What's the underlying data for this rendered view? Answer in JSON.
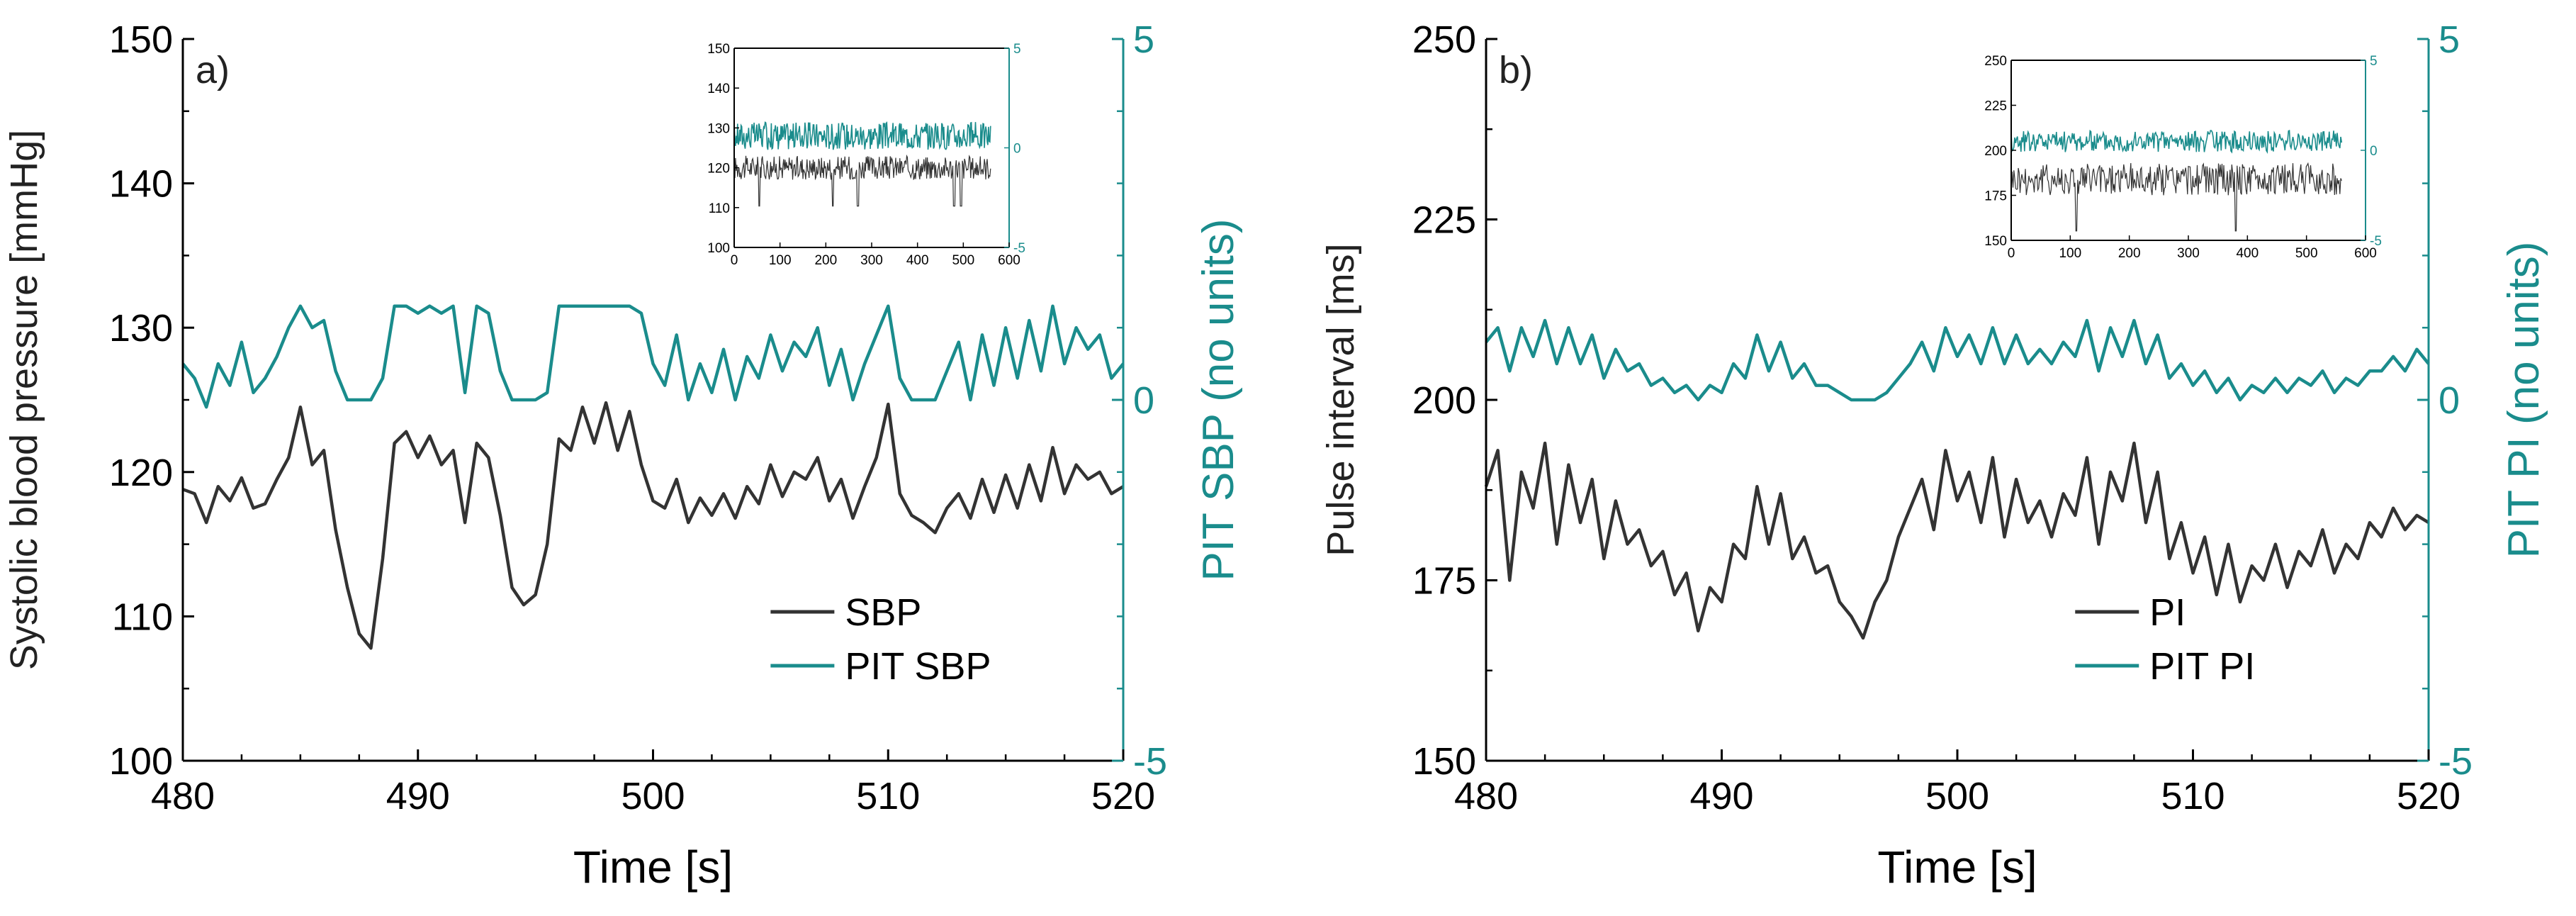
{
  "colors": {
    "primary": "#333333",
    "secondary": "#1a8c8c",
    "axis": "#000000"
  },
  "chart_data": [
    {
      "type": "line",
      "panel_label": "a)",
      "xlabel": "Time [s]",
      "ylabel": "Systolic blood pressure [mmHg]",
      "y2label": "PIT SBP (no units)",
      "xlim": [
        480,
        520
      ],
      "ylim": [
        100,
        150
      ],
      "y2lim": [
        -5,
        5
      ],
      "xticks": [
        "480",
        "490",
        "500",
        "510",
        "520"
      ],
      "yticks": [
        "100",
        "110",
        "120",
        "130",
        "140",
        "150"
      ],
      "y2ticks": [
        "-5",
        "0",
        "5"
      ],
      "legend": [
        "SBP",
        "PIT SBP"
      ],
      "legend_position": "lower-right",
      "series": [
        {
          "name": "SBP",
          "axis": "left",
          "x": [
            480,
            480.5,
            481,
            481.5,
            482,
            482.5,
            483,
            483.5,
            484,
            484.5,
            485,
            485.5,
            486,
            486.5,
            487,
            487.5,
            488,
            488.5,
            489,
            489.5,
            490,
            490.5,
            491,
            491.5,
            492,
            492.5,
            493,
            493.5,
            494,
            494.5,
            495,
            495.5,
            496,
            496.5,
            497,
            497.5,
            498,
            498.5,
            499,
            499.5,
            500,
            500.5,
            501,
            501.5,
            502,
            502.5,
            503,
            503.5,
            504,
            504.5,
            505,
            505.5,
            506,
            506.5,
            507,
            507.5,
            508,
            508.5,
            509,
            509.5,
            510,
            510.5,
            511,
            511.5,
            512,
            512.5,
            513,
            513.5,
            514,
            514.5,
            515,
            515.5,
            516,
            516.5,
            517,
            517.5,
            518,
            518.5,
            519,
            519.5,
            520
          ],
          "values": [
            118.8,
            118.5,
            116.5,
            119,
            118,
            119.6,
            117.5,
            117.8,
            119.5,
            121,
            124.5,
            120.5,
            121.5,
            116,
            112,
            108.8,
            107.8,
            114,
            122,
            122.8,
            121,
            122.5,
            120.5,
            121.5,
            116.5,
            122,
            121,
            117,
            112,
            110.8,
            111.5,
            115,
            122.3,
            121.5,
            124.5,
            122,
            124.8,
            121.5,
            124.2,
            120.5,
            118,
            117.5,
            119.5,
            116.5,
            118.2,
            117,
            118.5,
            116.8,
            119,
            117.8,
            120.5,
            118.3,
            120,
            119.5,
            121,
            118,
            119.5,
            116.8,
            119,
            121,
            124.7,
            118.5,
            117,
            116.5,
            115.8,
            117.5,
            118.5,
            116.8,
            119.5,
            117.2,
            119.8,
            117.5,
            120.5,
            118,
            121.7,
            118.5,
            120.5,
            119.5,
            120,
            118.5,
            119
          ]
        },
        {
          "name": "PIT SBP",
          "axis": "right",
          "x": [
            480,
            480.5,
            481,
            481.5,
            482,
            482.5,
            483,
            483.5,
            484,
            484.5,
            485,
            485.5,
            486,
            486.5,
            487,
            487.5,
            488,
            488.5,
            489,
            489.5,
            490,
            490.5,
            491,
            491.5,
            492,
            492.5,
            493,
            493.5,
            494,
            494.5,
            495,
            495.5,
            496,
            496.5,
            497,
            497.5,
            498,
            498.5,
            499,
            499.5,
            500,
            500.5,
            501,
            501.5,
            502,
            502.5,
            503,
            503.5,
            504,
            504.5,
            505,
            505.5,
            506,
            506.5,
            507,
            507.5,
            508,
            508.5,
            509,
            509.5,
            510,
            510.5,
            511,
            511.5,
            512,
            512.5,
            513,
            513.5,
            514,
            514.5,
            515,
            515.5,
            516,
            516.5,
            517,
            517.5,
            518,
            518.5,
            519,
            519.5,
            520
          ],
          "values": [
            0.5,
            0.3,
            -0.1,
            0.5,
            0.2,
            0.8,
            0.1,
            0.3,
            0.6,
            1.0,
            1.3,
            1.0,
            1.1,
            0.4,
            0.0,
            0.0,
            0.0,
            0.3,
            1.3,
            1.3,
            1.2,
            1.3,
            1.2,
            1.3,
            0.1,
            1.3,
            1.2,
            0.4,
            0.0,
            0.0,
            0.0,
            0.1,
            1.3,
            1.3,
            1.3,
            1.3,
            1.3,
            1.3,
            1.3,
            1.2,
            0.5,
            0.2,
            0.9,
            0.0,
            0.5,
            0.1,
            0.7,
            0.0,
            0.6,
            0.3,
            0.9,
            0.4,
            0.8,
            0.6,
            1.0,
            0.2,
            0.7,
            0.0,
            0.5,
            0.9,
            1.3,
            0.3,
            0.0,
            0.0,
            0.0,
            0.4,
            0.8,
            0.0,
            0.9,
            0.2,
            1.0,
            0.3,
            1.1,
            0.4,
            1.3,
            0.5,
            1.0,
            0.7,
            0.9,
            0.3,
            0.5
          ]
        }
      ],
      "inset": {
        "xlim": [
          0,
          600
        ],
        "ylim": [
          100,
          150
        ],
        "y2lim": [
          -5,
          5
        ],
        "xticks": [
          "0",
          "100",
          "200",
          "300",
          "400",
          "500",
          "600"
        ],
        "yticks": [
          "100",
          "110",
          "120",
          "130",
          "140",
          "150"
        ],
        "y2ticks": [
          "-5",
          "0",
          "5"
        ],
        "data_extent": [
          0,
          560
        ],
        "primary_mean": 120,
        "primary_amp": 3,
        "primary_spikes": [
          55,
          215,
          270,
          480,
          495
        ],
        "secondary_mean": 0.6,
        "secondary_amp": 0.7
      }
    },
    {
      "type": "line",
      "panel_label": "b)",
      "xlabel": "Time [s]",
      "ylabel": "Pulse interval [ms]",
      "y2label": "PIT PI (no units)",
      "xlim": [
        480,
        520
      ],
      "ylim": [
        150,
        250
      ],
      "y2lim": [
        -5,
        5
      ],
      "xticks": [
        "480",
        "490",
        "500",
        "510",
        "520"
      ],
      "yticks": [
        "150",
        "175",
        "200",
        "225",
        "250"
      ],
      "y2ticks": [
        "-5",
        "0",
        "5"
      ],
      "legend": [
        "PI",
        "PIT PI"
      ],
      "legend_position": "lower-right",
      "series": [
        {
          "name": "PI",
          "axis": "left",
          "x": [
            480,
            480.5,
            481,
            481.5,
            482,
            482.5,
            483,
            483.5,
            484,
            484.5,
            485,
            485.5,
            486,
            486.5,
            487,
            487.5,
            488,
            488.5,
            489,
            489.5,
            490,
            490.5,
            491,
            491.5,
            492,
            492.5,
            493,
            493.5,
            494,
            494.5,
            495,
            495.5,
            496,
            496.5,
            497,
            497.5,
            498,
            498.5,
            499,
            499.5,
            500,
            500.5,
            501,
            501.5,
            502,
            502.5,
            503,
            503.5,
            504,
            504.5,
            505,
            505.5,
            506,
            506.5,
            507,
            507.5,
            508,
            508.5,
            509,
            509.5,
            510,
            510.5,
            511,
            511.5,
            512,
            512.5,
            513,
            513.5,
            514,
            514.5,
            515,
            515.5,
            516,
            516.5,
            517,
            517.5,
            518,
            518.5,
            519,
            519.5,
            520
          ],
          "values": [
            188,
            193,
            175,
            190,
            185,
            194,
            180,
            191,
            183,
            189,
            178,
            186,
            180,
            182,
            177,
            179,
            173,
            176,
            168,
            174,
            172,
            180,
            178,
            188,
            180,
            187,
            178,
            181,
            176,
            177,
            172,
            170,
            167,
            172,
            175,
            181,
            185,
            189,
            182,
            193,
            186,
            190,
            183,
            192,
            181,
            189,
            183,
            186,
            181,
            187,
            184,
            192,
            180,
            190,
            186,
            194,
            183,
            190,
            178,
            183,
            176,
            181,
            173,
            180,
            172,
            177,
            175,
            180,
            174,
            179,
            177,
            182,
            176,
            180,
            178,
            183,
            181,
            185,
            182,
            184,
            183
          ]
        },
        {
          "name": "PIT PI",
          "axis": "right",
          "x": [
            480,
            480.5,
            481,
            481.5,
            482,
            482.5,
            483,
            483.5,
            484,
            484.5,
            485,
            485.5,
            486,
            486.5,
            487,
            487.5,
            488,
            488.5,
            489,
            489.5,
            490,
            490.5,
            491,
            491.5,
            492,
            492.5,
            493,
            493.5,
            494,
            494.5,
            495,
            495.5,
            496,
            496.5,
            497,
            497.5,
            498,
            498.5,
            499,
            499.5,
            500,
            500.5,
            501,
            501.5,
            502,
            502.5,
            503,
            503.5,
            504,
            504.5,
            505,
            505.5,
            506,
            506.5,
            507,
            507.5,
            508,
            508.5,
            509,
            509.5,
            510,
            510.5,
            511,
            511.5,
            512,
            512.5,
            513,
            513.5,
            514,
            514.5,
            515,
            515.5,
            516,
            516.5,
            517,
            517.5,
            518,
            518.5,
            519,
            519.5,
            520
          ],
          "values": [
            0.8,
            1.0,
            0.4,
            1.0,
            0.6,
            1.1,
            0.5,
            1.0,
            0.5,
            0.9,
            0.3,
            0.7,
            0.4,
            0.5,
            0.2,
            0.3,
            0.1,
            0.2,
            0.0,
            0.2,
            0.1,
            0.5,
            0.3,
            0.9,
            0.4,
            0.8,
            0.3,
            0.5,
            0.2,
            0.2,
            0.1,
            0.0,
            0.0,
            0.0,
            0.1,
            0.3,
            0.5,
            0.8,
            0.4,
            1.0,
            0.6,
            0.9,
            0.5,
            1.0,
            0.5,
            0.9,
            0.5,
            0.7,
            0.5,
            0.8,
            0.6,
            1.1,
            0.4,
            1.0,
            0.6,
            1.1,
            0.5,
            0.9,
            0.3,
            0.5,
            0.2,
            0.4,
            0.1,
            0.3,
            0.0,
            0.2,
            0.1,
            0.3,
            0.1,
            0.3,
            0.2,
            0.4,
            0.1,
            0.3,
            0.2,
            0.4,
            0.4,
            0.6,
            0.4,
            0.7,
            0.5
          ]
        }
      ],
      "inset": {
        "xlim": [
          0,
          600
        ],
        "ylim": [
          150,
          250
        ],
        "y2lim": [
          -5,
          5
        ],
        "xticks": [
          "0",
          "100",
          "200",
          "300",
          "400",
          "500",
          "600"
        ],
        "yticks": [
          "150",
          "175",
          "200",
          "225",
          "250"
        ],
        "y2ticks": [
          "-5",
          "0",
          "5"
        ],
        "data_extent": [
          0,
          560
        ],
        "primary_mean": 184,
        "primary_amp": 9,
        "primary_spikes": [
          110,
          380
        ],
        "secondary_mean": 0.5,
        "secondary_amp": 0.6
      }
    }
  ]
}
